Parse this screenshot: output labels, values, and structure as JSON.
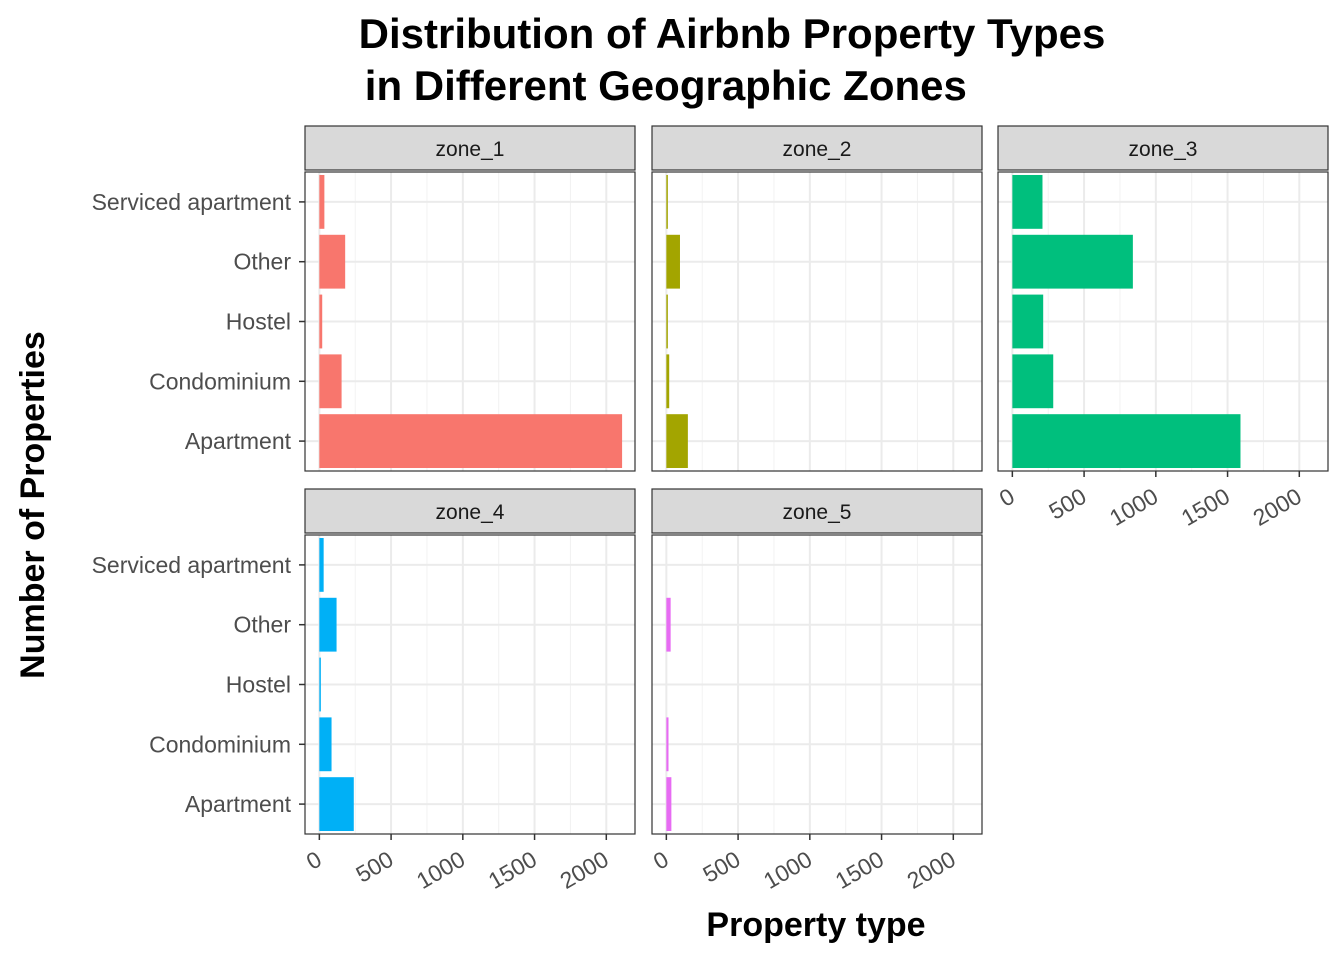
{
  "chart_data": {
    "type": "bar",
    "orientation": "horizontal",
    "title_lines": [
      "Distribution of Airbnb Property Types",
      " in Different Geographic Zones"
    ],
    "xlabel": "Property type",
    "ylabel": "Number of Properties",
    "categories": [
      "Apartment",
      "Condominium",
      "Hostel",
      "Other",
      "Serviced apartment"
    ],
    "xlim": [
      -100,
      2200
    ],
    "xticks": [
      0,
      500,
      1000,
      1500,
      2000
    ],
    "grid": true,
    "legend": "none",
    "facets": [
      {
        "name": "zone_1",
        "color": "#F8766D",
        "values": [
          2110,
          155,
          20,
          180,
          35
        ]
      },
      {
        "name": "zone_2",
        "color": "#A3A500",
        "values": [
          150,
          20,
          8,
          95,
          5
        ]
      },
      {
        "name": "zone_3",
        "color": "#00BF7D",
        "values": [
          1590,
          285,
          215,
          840,
          210
        ]
      },
      {
        "name": "zone_4",
        "color": "#00B0F6",
        "values": [
          240,
          85,
          8,
          120,
          30
        ]
      },
      {
        "name": "zone_5",
        "color": "#E76BF3",
        "values": [
          35,
          15,
          0,
          30,
          0
        ]
      }
    ]
  }
}
